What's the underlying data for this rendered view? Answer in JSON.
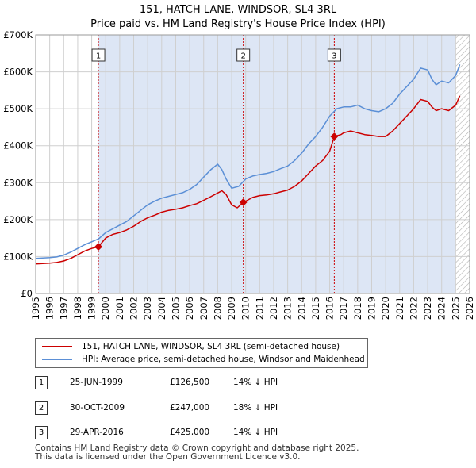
{
  "title_line1": "151, HATCH LANE, WINDSOR, SL4 3RL",
  "title_line2": "Price paid vs. HM Land Registry's House Price Index (HPI)",
  "colors": {
    "property": "#cc0000",
    "hpi": "#5b8fd6",
    "shade": "#dde6f5",
    "grid": "#cfcfcf",
    "marker_line": "#cc0000"
  },
  "chart_data": {
    "type": "line",
    "title": "151, HATCH LANE, WINDSOR, SL4 3RL",
    "subtitle": "Price paid vs. HM Land Registry's House Price Index (HPI)",
    "xlabel": "",
    "ylabel": "",
    "xlim": [
      1995,
      2026
    ],
    "ylim": [
      0,
      700000
    ],
    "y_ticks": [
      0,
      100000,
      200000,
      300000,
      400000,
      500000,
      600000,
      700000
    ],
    "y_tick_labels": [
      "£0",
      "£100K",
      "£200K",
      "£300K",
      "£400K",
      "£500K",
      "£600K",
      "£700K"
    ],
    "x_ticks": [
      1995,
      1996,
      1997,
      1998,
      1999,
      2000,
      2001,
      2002,
      2003,
      2004,
      2005,
      2006,
      2007,
      2008,
      2009,
      2010,
      2011,
      2012,
      2013,
      2014,
      2015,
      2016,
      2017,
      2018,
      2019,
      2020,
      2021,
      2022,
      2023,
      2024,
      2025,
      2026
    ],
    "x_tick_labels": [
      "1995",
      "1996",
      "1997",
      "1998",
      "1999",
      "2000",
      "2001",
      "2002",
      "2003",
      "2004",
      "2005",
      "2006",
      "2007",
      "2008",
      "2009",
      "2010",
      "2011",
      "2012",
      "2013",
      "2014",
      "2015",
      "2016",
      "2017",
      "2018",
      "2019",
      "2020",
      "2021",
      "2022",
      "2023",
      "2024",
      "2025",
      "2026"
    ],
    "shaded_range": [
      1999.48,
      2025.0
    ],
    "hatched_from": 2025.0,
    "grid": true,
    "series": [
      {
        "name": "151, HATCH LANE, WINDSOR, SL4 3RL (semi-detached house)",
        "color": "#cc0000",
        "x": [
          1995,
          1995.5,
          1996,
          1996.5,
          1997,
          1997.5,
          1998,
          1998.5,
          1999,
          1999.48,
          2000,
          2000.5,
          2001,
          2001.5,
          2002,
          2002.5,
          2003,
          2003.5,
          2004,
          2004.5,
          2005,
          2005.5,
          2006,
          2006.5,
          2007,
          2007.5,
          2008,
          2008.3,
          2008.6,
          2009,
          2009.4,
          2009.83,
          2010,
          2010.5,
          2011,
          2011.5,
          2012,
          2012.5,
          2013,
          2013.5,
          2014,
          2014.5,
          2015,
          2015.5,
          2016,
          2016.33,
          2016.8,
          2017,
          2017.5,
          2018,
          2018.5,
          2019,
          2019.5,
          2020,
          2020.5,
          2021,
          2021.5,
          2022,
          2022.5,
          2023,
          2023.3,
          2023.6,
          2024,
          2024.5,
          2025,
          2025.3
        ],
        "values": [
          80000,
          81000,
          82000,
          84000,
          88000,
          95000,
          105000,
          115000,
          122000,
          126500,
          150000,
          160000,
          165000,
          172000,
          182000,
          195000,
          205000,
          212000,
          220000,
          225000,
          228000,
          232000,
          238000,
          243000,
          252000,
          262000,
          272000,
          278000,
          268000,
          240000,
          232000,
          247000,
          250000,
          260000,
          265000,
          267000,
          270000,
          275000,
          280000,
          290000,
          305000,
          325000,
          345000,
          360000,
          385000,
          425000,
          430000,
          435000,
          440000,
          435000,
          430000,
          428000,
          425000,
          425000,
          440000,
          460000,
          480000,
          500000,
          525000,
          520000,
          505000,
          495000,
          500000,
          495000,
          510000,
          535000
        ]
      },
      {
        "name": "HPI: Average price, semi-detached house, Windsor and Maidenhead",
        "color": "#5b8fd6",
        "x": [
          1995,
          1995.5,
          1996,
          1996.5,
          1997,
          1997.5,
          1998,
          1998.5,
          1999,
          1999.5,
          2000,
          2000.5,
          2001,
          2001.5,
          2002,
          2002.5,
          2003,
          2003.5,
          2004,
          2004.5,
          2005,
          2005.5,
          2006,
          2006.5,
          2007,
          2007.5,
          2008,
          2008.3,
          2008.6,
          2009,
          2009.5,
          2010,
          2010.5,
          2011,
          2011.5,
          2012,
          2012.5,
          2013,
          2013.5,
          2014,
          2014.5,
          2015,
          2015.5,
          2016,
          2016.5,
          2017,
          2017.5,
          2018,
          2018.5,
          2019,
          2019.5,
          2020,
          2020.5,
          2021,
          2021.5,
          2022,
          2022.5,
          2023,
          2023.3,
          2023.6,
          2024,
          2024.5,
          2025,
          2025.3
        ],
        "values": [
          95000,
          96000,
          97000,
          99000,
          104000,
          112000,
          122000,
          132000,
          140000,
          148000,
          165000,
          175000,
          185000,
          195000,
          210000,
          225000,
          240000,
          250000,
          258000,
          263000,
          268000,
          273000,
          282000,
          295000,
          315000,
          335000,
          350000,
          335000,
          310000,
          285000,
          290000,
          310000,
          318000,
          322000,
          325000,
          330000,
          338000,
          345000,
          360000,
          380000,
          405000,
          425000,
          450000,
          480000,
          500000,
          505000,
          505000,
          510000,
          500000,
          495000,
          492000,
          500000,
          515000,
          540000,
          560000,
          580000,
          610000,
          605000,
          580000,
          565000,
          575000,
          570000,
          590000,
          620000
        ]
      }
    ],
    "sales": [
      {
        "label": "1",
        "year": 1999.48,
        "price": 126500
      },
      {
        "label": "2",
        "year": 2009.83,
        "price": 247000
      },
      {
        "label": "3",
        "year": 2016.33,
        "price": 425000
      }
    ]
  },
  "legend": {
    "property_label": "151, HATCH LANE, WINDSOR, SL4 3RL (semi-detached house)",
    "hpi_label": "HPI: Average price, semi-detached house, Windsor and Maidenhead"
  },
  "sales_table": [
    {
      "num": "1",
      "date": "25-JUN-1999",
      "price": "£126,500",
      "hpi": "14% ↓ HPI"
    },
    {
      "num": "2",
      "date": "30-OCT-2009",
      "price": "£247,000",
      "hpi": "18% ↓ HPI"
    },
    {
      "num": "3",
      "date": "29-APR-2016",
      "price": "£425,000",
      "hpi": "14% ↓ HPI"
    }
  ],
  "footer": {
    "line1": "Contains HM Land Registry data © Crown copyright and database right 2025.",
    "line2": "This data is licensed under the Open Government Licence v3.0."
  }
}
